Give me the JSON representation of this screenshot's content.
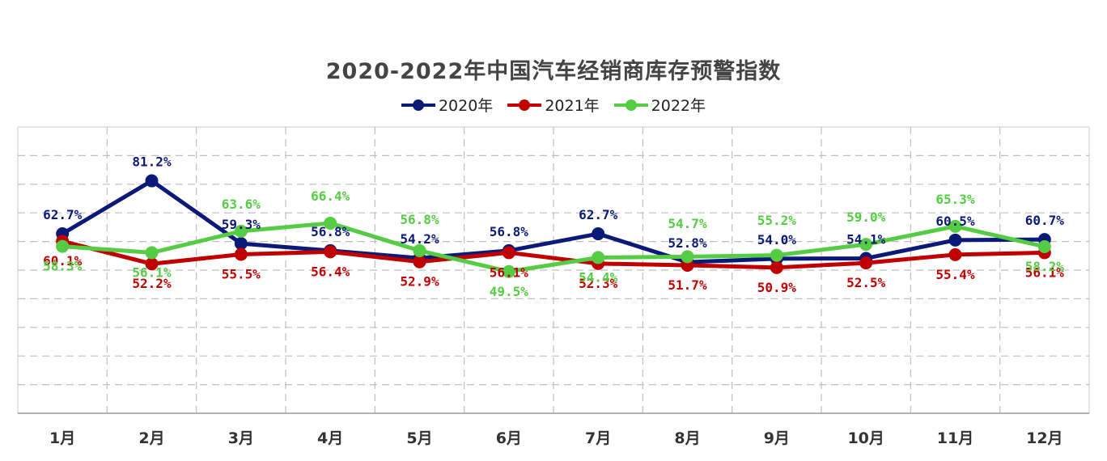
{
  "chart_data": {
    "type": "line",
    "title": "2020-2022年中国汽车经销商库存预警指数",
    "categories": [
      "1月",
      "2月",
      "3月",
      "4月",
      "5月",
      "6月",
      "7月",
      "8月",
      "9月",
      "10月",
      "11月",
      "12月"
    ],
    "series": [
      {
        "name": "2020年",
        "color": "#0b1a78",
        "values": [
          62.7,
          81.2,
          59.3,
          56.8,
          54.2,
          56.8,
          62.7,
          52.8,
          54.0,
          54.1,
          60.5,
          60.7
        ],
        "labels": [
          "62.7%",
          "81.2%",
          "59.3%",
          "56.8%",
          "54.2%",
          "56.8%",
          "62.7%",
          "52.8%",
          "54.0%",
          "54.1%",
          "60.5%",
          "60.7%"
        ]
      },
      {
        "name": "2021年",
        "color": "#c00000",
        "values": [
          60.1,
          52.2,
          55.5,
          56.4,
          52.9,
          56.1,
          52.3,
          51.7,
          50.9,
          52.5,
          55.4,
          56.1
        ],
        "labels": [
          "60.1%",
          "52.2%",
          "55.5%",
          "56.4%",
          "52.9%",
          "56.1%",
          "52.3%",
          "51.7%",
          "50.9%",
          "52.5%",
          "55.4%",
          "56.1%"
        ]
      },
      {
        "name": "2022年",
        "color": "#55cc44",
        "values": [
          58.3,
          56.1,
          63.6,
          66.4,
          56.8,
          49.5,
          54.4,
          54.7,
          55.2,
          59.0,
          65.3,
          58.2
        ],
        "labels": [
          "58.3%",
          "56.1%",
          "63.6%",
          "66.4%",
          "56.8%",
          "49.5%",
          "54.4%",
          "54.7%",
          "55.2%",
          "59.0%",
          "65.3%",
          "58.2%"
        ]
      }
    ],
    "ylim": [
      0,
      100
    ],
    "grid": true,
    "legend_position": "top"
  }
}
